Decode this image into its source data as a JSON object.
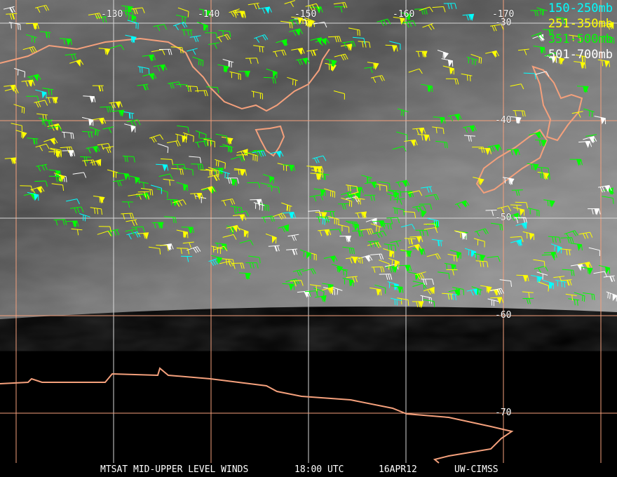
{
  "title": "MTSAT MID-UPPER LEVEL WINDS",
  "time": "18:00 UTC",
  "date": "16APR12",
  "source": "UW-CIMSS",
  "longitude_labels": [
    "-130",
    "-140",
    "-150",
    "-160",
    "-170"
  ],
  "latitude_labels": [
    "-30",
    "-40",
    "-50",
    "-60",
    "-70"
  ],
  "legend": [
    {
      "label": "150-250mb",
      "color": "#00ffff"
    },
    {
      "label": "251-350mb",
      "color": "#ffff00"
    },
    {
      "label": "351-500mb",
      "color": "#00ff00"
    },
    {
      "label": "501-700mb",
      "color": "#ffffff"
    }
  ],
  "colors": {
    "coastline": "#f4a07c",
    "grid_white": "#d8d8d8",
    "grid_orange": "#f4a07c"
  }
}
